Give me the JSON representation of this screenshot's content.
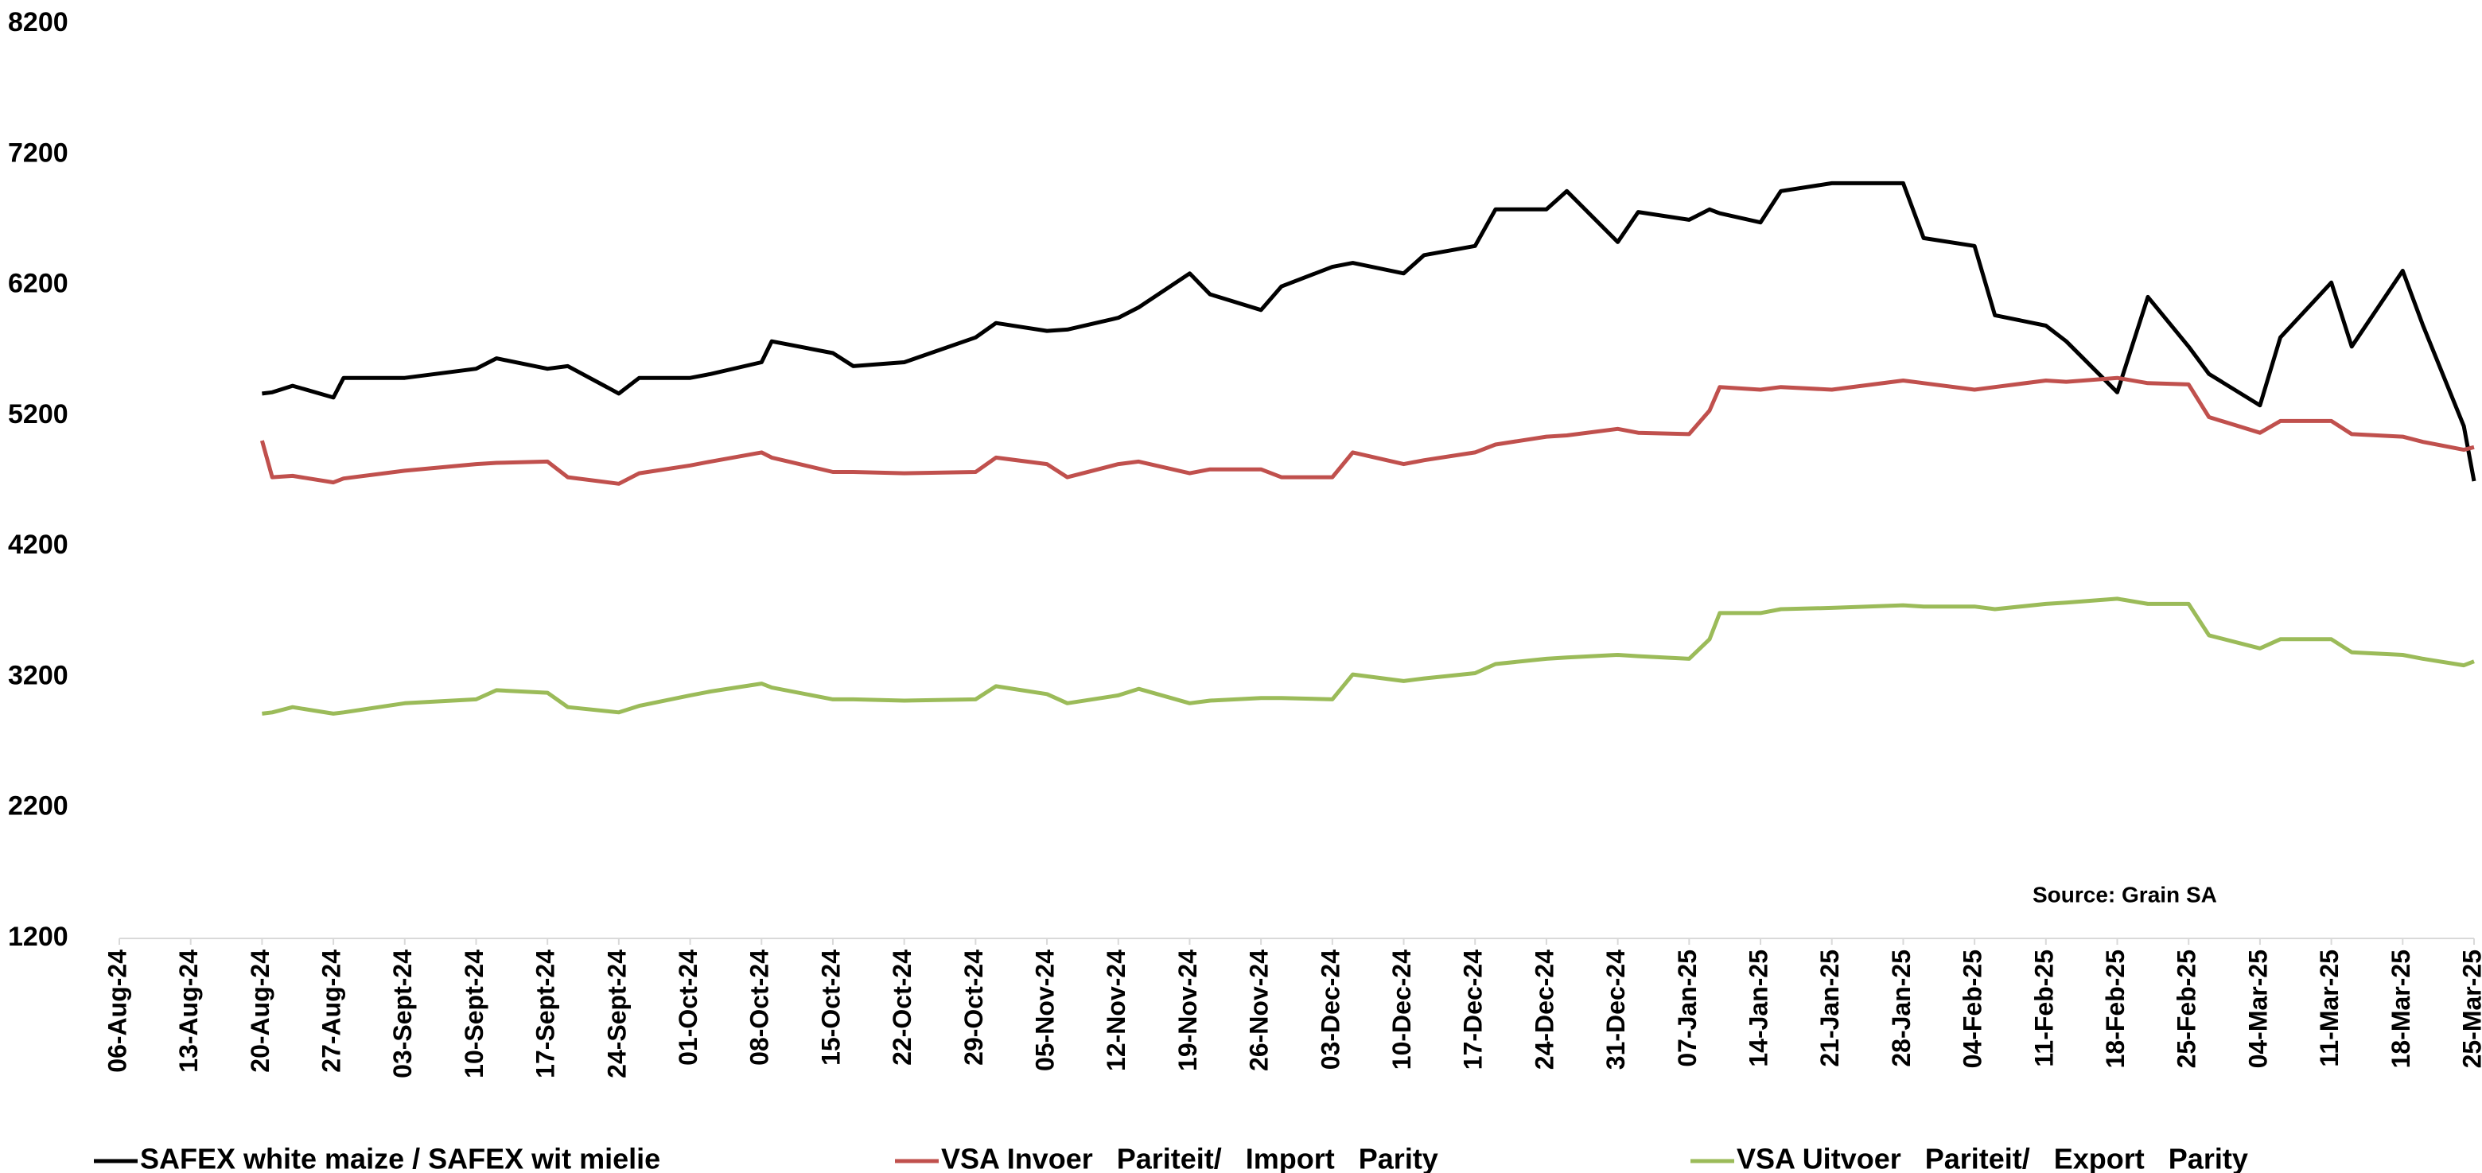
{
  "chart_data": {
    "type": "line",
    "annotation": "Source: Grain SA",
    "ylim": [
      1200,
      8200
    ],
    "yticks": [
      1200,
      2200,
      3200,
      4200,
      5200,
      6200,
      7200,
      8200
    ],
    "xlim": [
      "2024-08-06",
      "2025-03-25"
    ],
    "xticks": [
      {
        "value": "2024-08-06",
        "label": "06-Aug-24"
      },
      {
        "value": "2024-08-13",
        "label": "13-Aug-24"
      },
      {
        "value": "2024-08-20",
        "label": "20-Aug-24"
      },
      {
        "value": "2024-08-27",
        "label": "27-Aug-24"
      },
      {
        "value": "2024-09-03",
        "label": "03-Sept-24"
      },
      {
        "value": "2024-09-10",
        "label": "10-Sept-24"
      },
      {
        "value": "2024-09-17",
        "label": "17-Sept-24"
      },
      {
        "value": "2024-09-24",
        "label": "24-Sept-24"
      },
      {
        "value": "2024-10-01",
        "label": "01-Oct-24"
      },
      {
        "value": "2024-10-08",
        "label": "08-Oct-24"
      },
      {
        "value": "2024-10-15",
        "label": "15-Oct-24"
      },
      {
        "value": "2024-10-22",
        "label": "22-Oct-24"
      },
      {
        "value": "2024-10-29",
        "label": "29-Oct-24"
      },
      {
        "value": "2024-11-05",
        "label": "05-Nov-24"
      },
      {
        "value": "2024-11-12",
        "label": "12-Nov-24"
      },
      {
        "value": "2024-11-19",
        "label": "19-Nov-24"
      },
      {
        "value": "2024-11-26",
        "label": "26-Nov-24"
      },
      {
        "value": "2024-12-03",
        "label": "03-Dec-24"
      },
      {
        "value": "2024-12-10",
        "label": "10-Dec-24"
      },
      {
        "value": "2024-12-17",
        "label": "17-Dec-24"
      },
      {
        "value": "2024-12-24",
        "label": "24-Dec-24"
      },
      {
        "value": "2024-12-31",
        "label": "31-Dec-24"
      },
      {
        "value": "2025-01-07",
        "label": "07-Jan-25"
      },
      {
        "value": "2025-01-14",
        "label": "14-Jan-25"
      },
      {
        "value": "2025-01-21",
        "label": "21-Jan-25"
      },
      {
        "value": "2025-01-28",
        "label": "28-Jan-25"
      },
      {
        "value": "2025-02-04",
        "label": "04-Feb-25"
      },
      {
        "value": "2025-02-11",
        "label": "11-Feb-25"
      },
      {
        "value": "2025-02-18",
        "label": "18-Feb-25"
      },
      {
        "value": "2025-02-25",
        "label": "25-Feb-25"
      },
      {
        "value": "2025-03-04",
        "label": "04-Mar-25"
      },
      {
        "value": "2025-03-11",
        "label": "11-Mar-25"
      },
      {
        "value": "2025-03-18",
        "label": "18-Mar-25"
      },
      {
        "value": "2025-03-25",
        "label": "25-Mar-25"
      }
    ],
    "grid": false,
    "legend": "bottom",
    "x": [
      "2024-08-20",
      "2024-08-21",
      "2024-08-23",
      "2024-08-27",
      "2024-08-28",
      "2024-09-03",
      "2024-09-10",
      "2024-09-12",
      "2024-09-17",
      "2024-09-19",
      "2024-09-24",
      "2024-09-26",
      "2024-10-01",
      "2024-10-03",
      "2024-10-08",
      "2024-10-09",
      "2024-10-15",
      "2024-10-17",
      "2024-10-22",
      "2024-10-29",
      "2024-10-31",
      "2024-11-05",
      "2024-11-07",
      "2024-11-12",
      "2024-11-14",
      "2024-11-19",
      "2024-11-21",
      "2024-11-26",
      "2024-11-28",
      "2024-12-03",
      "2024-12-05",
      "2024-12-10",
      "2024-12-12",
      "2024-12-17",
      "2024-12-19",
      "2024-12-24",
      "2024-12-26",
      "2024-12-31",
      "2025-01-02",
      "2025-01-07",
      "2025-01-09",
      "2025-01-10",
      "2025-01-14",
      "2025-01-16",
      "2025-01-21",
      "2025-01-28",
      "2025-01-30",
      "2025-02-04",
      "2025-02-06",
      "2025-02-11",
      "2025-02-13",
      "2025-02-18",
      "2025-02-21",
      "2025-02-25",
      "2025-02-27",
      "2025-03-04",
      "2025-03-06",
      "2025-03-11",
      "2025-03-13",
      "2025-03-18",
      "2025-03-20",
      "2025-03-24",
      "2025-03-25"
    ],
    "series": [
      {
        "name": "SAFEX white maize / SAFEX wit mielie",
        "color": "#000000",
        "values": [
          5370,
          5380,
          5430,
          5340,
          5490,
          5490,
          5560,
          5640,
          5560,
          5580,
          5370,
          5490,
          5490,
          5520,
          5610,
          5770,
          5680,
          5580,
          5610,
          5800,
          5910,
          5850,
          5860,
          5950,
          6030,
          6290,
          6130,
          6010,
          6190,
          6340,
          6370,
          6290,
          6430,
          6500,
          6780,
          6780,
          6920,
          6530,
          6760,
          6700,
          6780,
          6750,
          6680,
          6920,
          6980,
          6980,
          6560,
          6500,
          5970,
          5890,
          5770,
          5380,
          6110,
          5730,
          5520,
          5280,
          5800,
          6220,
          5730,
          6310,
          5890,
          5120,
          4700
        ]
      },
      {
        "name": "VSA Invoer   Pariteit/   Import   Parity",
        "color": "#c0504d",
        "values": [
          5010,
          4730,
          4740,
          4690,
          4720,
          4780,
          4830,
          4840,
          4850,
          4730,
          4680,
          4760,
          4820,
          4850,
          4920,
          4880,
          4770,
          4770,
          4760,
          4770,
          4880,
          4830,
          4730,
          4830,
          4850,
          4760,
          4790,
          4790,
          4730,
          4730,
          4920,
          4830,
          4860,
          4920,
          4980,
          5040,
          5050,
          5100,
          5070,
          5060,
          5240,
          5420,
          5400,
          5420,
          5400,
          5470,
          5450,
          5400,
          5420,
          5470,
          5460,
          5490,
          5450,
          5440,
          5190,
          5070,
          5160,
          5160,
          5060,
          5040,
          5000,
          4940,
          4960
        ]
      },
      {
        "name": "VSA Uitvoer   Pariteit/   Export   Parity",
        "color": "#9bbb59",
        "values": [
          2920,
          2930,
          2970,
          2920,
          2930,
          3000,
          3030,
          3100,
          3080,
          2970,
          2930,
          2980,
          3060,
          3090,
          3150,
          3120,
          3030,
          3030,
          3020,
          3030,
          3130,
          3070,
          3000,
          3060,
          3110,
          3000,
          3020,
          3040,
          3040,
          3030,
          3220,
          3170,
          3190,
          3230,
          3300,
          3340,
          3350,
          3370,
          3360,
          3340,
          3490,
          3690,
          3690,
          3720,
          3730,
          3750,
          3740,
          3740,
          3720,
          3760,
          3770,
          3800,
          3760,
          3760,
          3520,
          3420,
          3490,
          3490,
          3390,
          3370,
          3340,
          3290,
          3320
        ]
      }
    ]
  }
}
